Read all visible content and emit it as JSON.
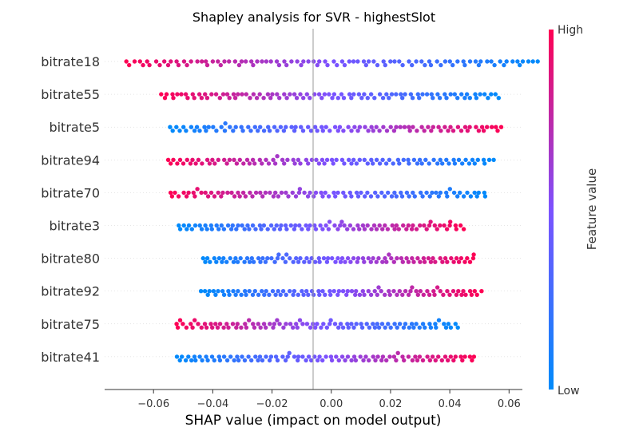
{
  "chart_data": {
    "type": "scatter",
    "subtype": "shap_beeswarm",
    "title": "Shapley analysis for SVR - highestSlot",
    "xlabel": "SHAP value (impact on model output)",
    "xlim": [
      -0.0765,
      0.0645
    ],
    "xticks": [
      -0.06,
      -0.04,
      -0.02,
      0.0,
      0.02,
      0.04,
      0.06
    ],
    "xtick_labels": [
      "−0.06",
      "−0.04",
      "−0.02",
      "0.00",
      "0.02",
      "0.04",
      "0.06"
    ],
    "grid": false,
    "colorbar": {
      "label": "Feature value",
      "high_label": "High",
      "low_label": "Low",
      "low_color": "#008bfb",
      "mid_color": "#7c52ff",
      "high_color": "#ff0052"
    },
    "features": [
      {
        "name": "bitrate18",
        "min": -0.07,
        "max": 0.07,
        "direction": -1
      },
      {
        "name": "bitrate55",
        "min": -0.058,
        "max": 0.057,
        "direction": -1
      },
      {
        "name": "bitrate5",
        "min": -0.055,
        "max": 0.058,
        "direction": 1
      },
      {
        "name": "bitrate94",
        "min": -0.056,
        "max": 0.055,
        "direction": -1
      },
      {
        "name": "bitrate70",
        "min": -0.055,
        "max": 0.053,
        "direction": -1
      },
      {
        "name": "bitrate3",
        "min": -0.052,
        "max": 0.045,
        "direction": 1
      },
      {
        "name": "bitrate80",
        "min": -0.044,
        "max": 0.049,
        "direction": 1
      },
      {
        "name": "bitrate92",
        "min": -0.044,
        "max": 0.051,
        "direction": 1
      },
      {
        "name": "bitrate75",
        "min": -0.053,
        "max": 0.043,
        "direction": -1
      },
      {
        "name": "bitrate41",
        "min": -0.053,
        "max": 0.049,
        "direction": 1
      }
    ]
  }
}
